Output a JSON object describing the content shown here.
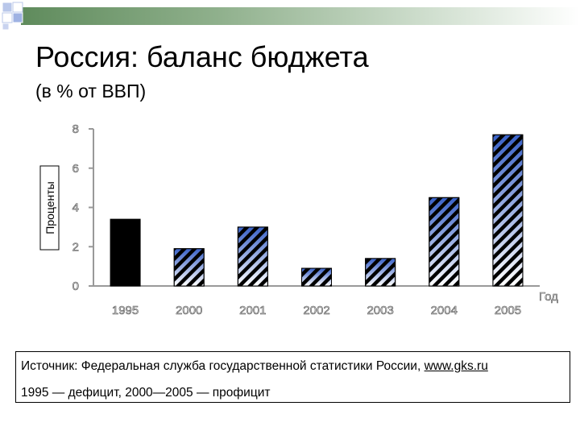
{
  "title": "Россия: баланс бюджета",
  "subtitle": "(в % от ВВП)",
  "source": {
    "label": "Источник: Федеральная служба государственной статистики России,",
    "link_text": "www.gks.ru",
    "note": "1995 — дефицит, 2000—2005 — профицит"
  },
  "colors": {
    "accent_bar": "#5f8b5c",
    "deficit_bar": "#000000",
    "surplus_light": "#ffffff",
    "surplus_dark": "#3a62c8",
    "hatch": "#000000"
  },
  "chart_data": {
    "type": "bar",
    "categories": [
      "1995",
      "2000",
      "2001",
      "2002",
      "2003",
      "2004",
      "2005"
    ],
    "values": [
      3.4,
      1.9,
      3.0,
      0.9,
      1.4,
      4.5,
      7.7
    ],
    "bar_styles": [
      "solid",
      "hatched",
      "hatched",
      "hatched",
      "hatched",
      "hatched",
      "hatched"
    ],
    "title": "",
    "xlabel": "Год",
    "ylabel": "Проценты",
    "ylim": [
      0,
      8
    ],
    "yticks": [
      0,
      2,
      4,
      6,
      8
    ],
    "grid": false,
    "legend": "none"
  }
}
